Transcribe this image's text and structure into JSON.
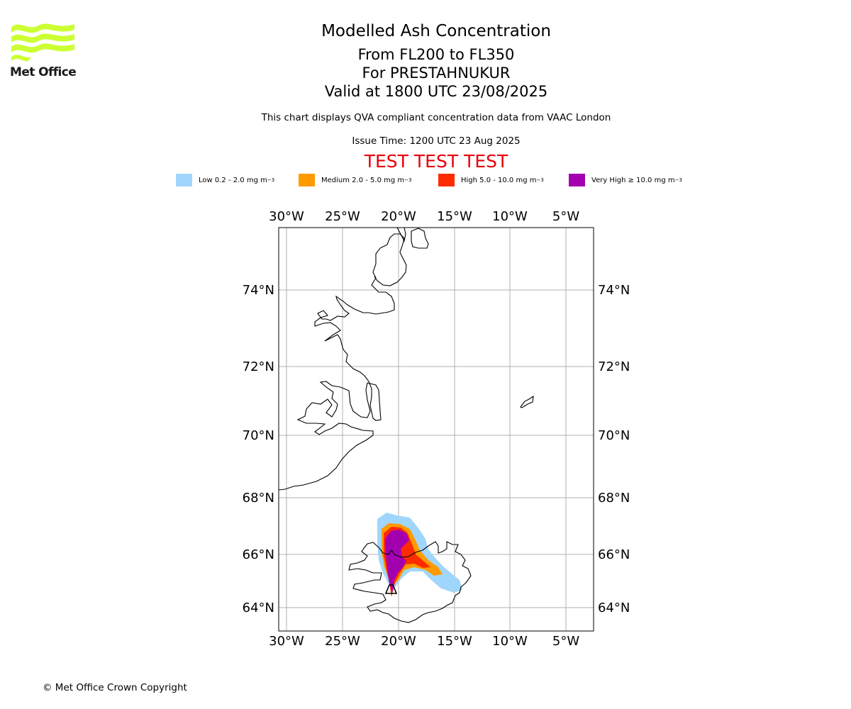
{
  "logo": {
    "text": "Met Office",
    "color": "#ccff33"
  },
  "header": {
    "title": "Modelled Ash Concentration",
    "levels": "From FL200 to FL350",
    "volcano": "For PRESTAHNUKUR",
    "valid": "Valid at 1800 UTC 23/08/2025",
    "description": "This chart displays QVA compliant concentration data from VAAC London",
    "issue_time": "Issue Time: 1200 UTC 23 Aug 2025",
    "test_banner": "TEST TEST TEST",
    "test_color": "#e8000b"
  },
  "legend": [
    {
      "label": "Low 0.2 - 2.0 mg m",
      "color": "#a1d6fc"
    },
    {
      "label": "Medium 2.0 - 5.0 mg m",
      "color": "#ff9a00"
    },
    {
      "label": "High 5.0 - 10.0 mg m",
      "color": "#ff2b00"
    },
    {
      "label": "Very High ≥ 10.0 mg m",
      "color": "#a300b0"
    }
  ],
  "legend_unit_exponent": "−3",
  "map": {
    "lon_ticks": [
      "30°W",
      "25°W",
      "20°W",
      "15°W",
      "10°W",
      "5°W"
    ],
    "lat_ticks": [
      "74°N",
      "72°N",
      "70°N",
      "68°N",
      "66°N",
      "64°N"
    ],
    "gridlines": true
  },
  "footer": {
    "copyright": "© Met Office Crown Copyright"
  }
}
